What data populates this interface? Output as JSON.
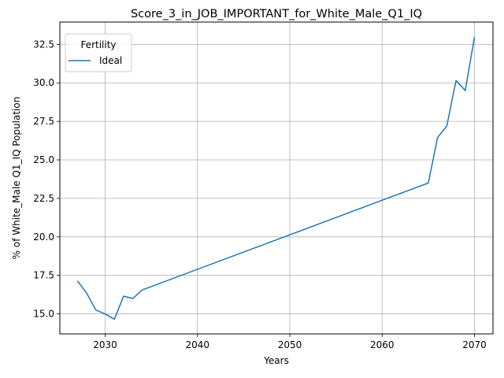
{
  "chart_data": {
    "type": "line",
    "title": "Score_3_in_JOB_IMPORTANT_for_White_Male_Q1_IQ",
    "xlabel": "Years",
    "ylabel": "% of White_Male Q1_IQ Population",
    "xlim": [
      2025.1,
      2072.0
    ],
    "ylim": [
      13.7,
      33.95
    ],
    "x_ticks": [
      2030,
      2040,
      2050,
      2060,
      2070
    ],
    "y_ticks": [
      15.0,
      17.5,
      20.0,
      22.5,
      25.0,
      27.5,
      30.0,
      32.5
    ],
    "grid": true,
    "legend": {
      "title": "Fertility",
      "placement": "top-left",
      "entries": [
        "Ideal"
      ]
    },
    "series": [
      {
        "name": "Ideal",
        "color": "#1f77b4",
        "x": [
          2027,
          2028,
          2029,
          2030,
          2031,
          2032,
          2033,
          2034,
          2065,
          2066,
          2067,
          2068,
          2069,
          2070
        ],
        "y": [
          17.15,
          16.35,
          15.25,
          15.0,
          14.65,
          16.15,
          16.0,
          16.55,
          23.5,
          26.45,
          27.2,
          30.15,
          29.5,
          33.0
        ]
      }
    ]
  }
}
